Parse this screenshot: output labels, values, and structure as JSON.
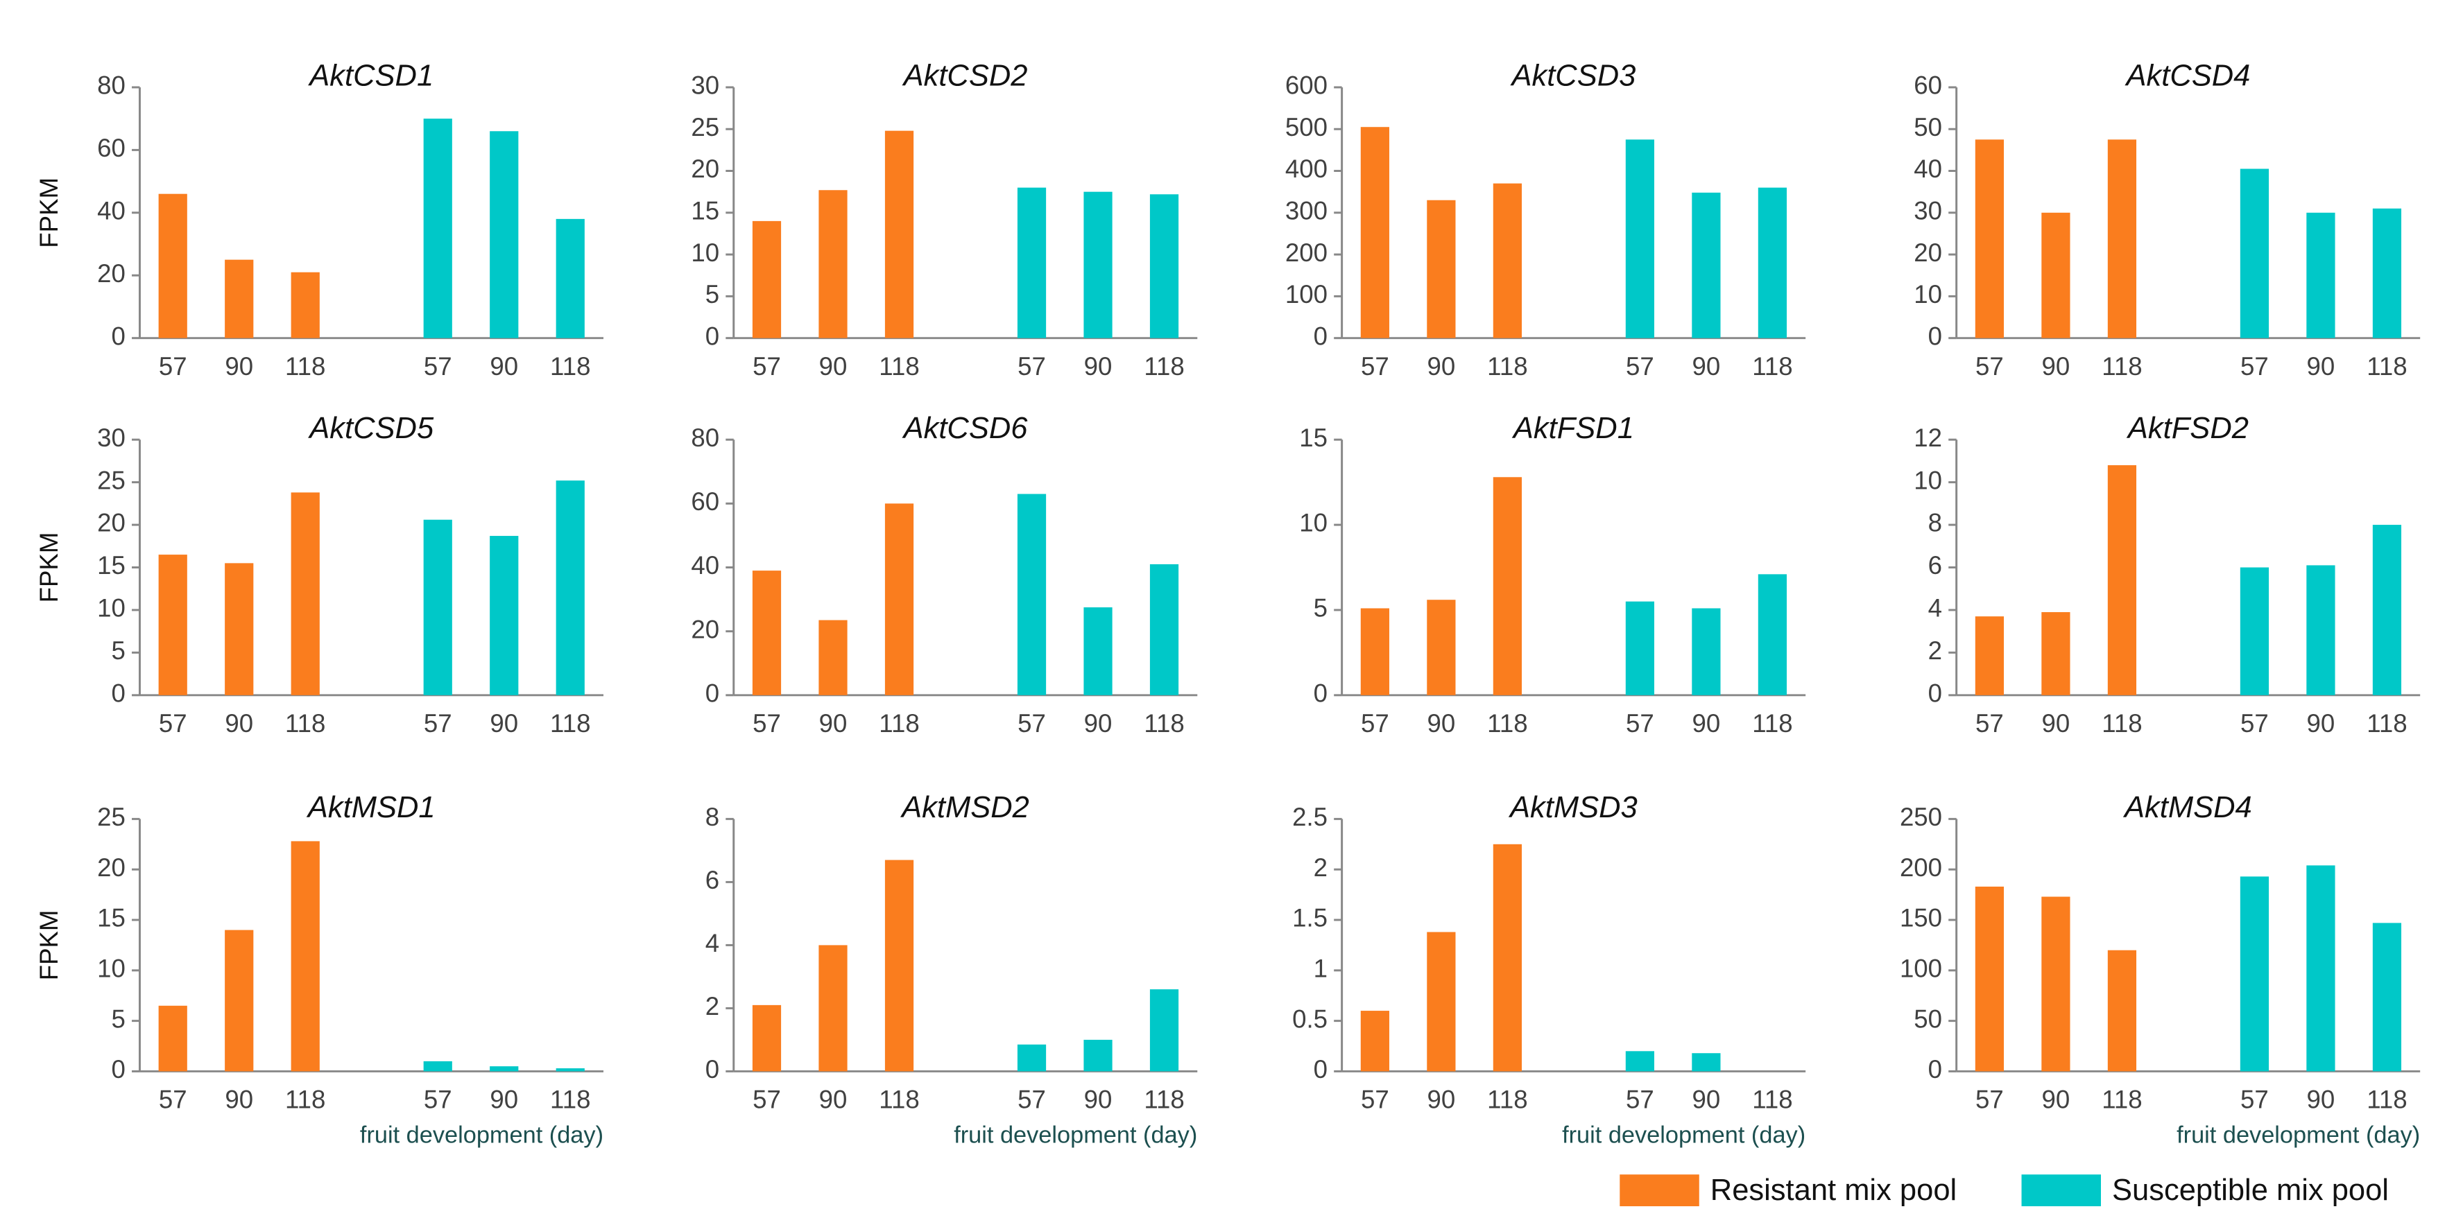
{
  "legend": [
    {
      "name": "Resistant mix pool",
      "color": "#fa7d1e"
    },
    {
      "name": "Susceptible mix pool",
      "color": "#00c8c8"
    }
  ],
  "chart_data": [
    {
      "type": "bar",
      "title": "AktCSD1",
      "ylabel": "FPKM",
      "categories": [
        "57",
        "90",
        "118",
        "57",
        "90",
        "118"
      ],
      "ylim": [
        0,
        80
      ],
      "yticks": [
        0,
        20,
        40,
        60,
        80
      ],
      "series": [
        {
          "values": [
            46,
            25,
            21,
            null,
            null,
            null
          ]
        },
        {
          "values": [
            null,
            null,
            null,
            70,
            66,
            38
          ]
        }
      ]
    },
    {
      "type": "bar",
      "title": "AktCSD2",
      "categories": [
        "57",
        "90",
        "118",
        "57",
        "90",
        "118"
      ],
      "ylim": [
        0,
        30
      ],
      "yticks": [
        0,
        5,
        10,
        15,
        20,
        25,
        30
      ],
      "series": [
        {
          "values": [
            14,
            17.7,
            24.8,
            null,
            null,
            null
          ]
        },
        {
          "values": [
            null,
            null,
            null,
            18,
            17.5,
            17.2
          ]
        }
      ]
    },
    {
      "type": "bar",
      "title": "AktCSD3",
      "categories": [
        "57",
        "90",
        "118",
        "57",
        "90",
        "118"
      ],
      "ylim": [
        0,
        600
      ],
      "yticks": [
        0,
        100,
        200,
        300,
        400,
        500,
        600
      ],
      "series": [
        {
          "values": [
            505,
            330,
            370,
            null,
            null,
            null
          ]
        },
        {
          "values": [
            null,
            null,
            null,
            475,
            348,
            360
          ]
        }
      ]
    },
    {
      "type": "bar",
      "title": "AktCSD4",
      "categories": [
        "57",
        "90",
        "118",
        "57",
        "90",
        "118"
      ],
      "ylim": [
        0,
        60
      ],
      "yticks": [
        0,
        10,
        20,
        30,
        40,
        50,
        60
      ],
      "series": [
        {
          "values": [
            47.5,
            30,
            47.5,
            null,
            null,
            null
          ]
        },
        {
          "values": [
            null,
            null,
            null,
            40.5,
            30,
            31
          ]
        }
      ]
    },
    {
      "type": "bar",
      "title": "AktCSD5",
      "ylabel": "FPKM",
      "categories": [
        "57",
        "90",
        "118",
        "57",
        "90",
        "118"
      ],
      "ylim": [
        0,
        30
      ],
      "yticks": [
        0,
        5,
        10,
        15,
        20,
        25,
        30
      ],
      "series": [
        {
          "values": [
            16.5,
            15.5,
            23.8,
            null,
            null,
            null
          ]
        },
        {
          "values": [
            null,
            null,
            null,
            20.6,
            18.7,
            25.2
          ]
        }
      ]
    },
    {
      "type": "bar",
      "title": "AktCSD6",
      "categories": [
        "57",
        "90",
        "118",
        "57",
        "90",
        "118"
      ],
      "ylim": [
        0,
        80
      ],
      "yticks": [
        0,
        20,
        40,
        60,
        80
      ],
      "series": [
        {
          "values": [
            39,
            23.5,
            60,
            null,
            null,
            null
          ]
        },
        {
          "values": [
            null,
            null,
            null,
            63,
            27.5,
            41
          ]
        }
      ]
    },
    {
      "type": "bar",
      "title": "AktFSD1",
      "categories": [
        "57",
        "90",
        "118",
        "57",
        "90",
        "118"
      ],
      "ylim": [
        0,
        15
      ],
      "yticks": [
        0,
        5,
        10,
        15
      ],
      "series": [
        {
          "values": [
            5.1,
            5.6,
            12.8,
            null,
            null,
            null
          ]
        },
        {
          "values": [
            null,
            null,
            null,
            5.5,
            5.1,
            7.1
          ]
        }
      ]
    },
    {
      "type": "bar",
      "title": "AktFSD2",
      "categories": [
        "57",
        "90",
        "118",
        "57",
        "90",
        "118"
      ],
      "ylim": [
        0,
        12
      ],
      "yticks": [
        0,
        2,
        4,
        6,
        8,
        10,
        12
      ],
      "series": [
        {
          "values": [
            3.7,
            3.9,
            10.8,
            null,
            null,
            null
          ]
        },
        {
          "values": [
            null,
            null,
            null,
            6,
            6.1,
            8
          ]
        }
      ]
    },
    {
      "type": "bar",
      "title": "AktMSD1",
      "ylabel": "FPKM",
      "xlabel": "fruit development (day)",
      "categories": [
        "57",
        "90",
        "118",
        "57",
        "90",
        "118"
      ],
      "ylim": [
        0,
        25
      ],
      "yticks": [
        0,
        5,
        10,
        15,
        20,
        25
      ],
      "series": [
        {
          "values": [
            6.5,
            14,
            22.8,
            null,
            null,
            null
          ]
        },
        {
          "values": [
            null,
            null,
            null,
            1,
            0.5,
            0.3
          ]
        }
      ]
    },
    {
      "type": "bar",
      "title": "AktMSD2",
      "xlabel": "fruit development (day)",
      "categories": [
        "57",
        "90",
        "118",
        "57",
        "90",
        "118"
      ],
      "ylim": [
        0,
        8
      ],
      "yticks": [
        0,
        2,
        4,
        6,
        8
      ],
      "series": [
        {
          "values": [
            2.1,
            4,
            6.7,
            null,
            null,
            null
          ]
        },
        {
          "values": [
            null,
            null,
            null,
            0.85,
            1,
            2.6
          ]
        }
      ]
    },
    {
      "type": "bar",
      "title": "AktMSD3",
      "xlabel": "fruit development (day)",
      "categories": [
        "57",
        "90",
        "118",
        "57",
        "90",
        "118"
      ],
      "ylim": [
        0,
        2.5
      ],
      "yticks": [
        0,
        0.5,
        1,
        1.5,
        2,
        2.5
      ],
      "series": [
        {
          "values": [
            0.6,
            1.38,
            2.25,
            null,
            null,
            null
          ]
        },
        {
          "values": [
            null,
            null,
            null,
            0.2,
            0.18,
            0
          ]
        }
      ]
    },
    {
      "type": "bar",
      "title": "AktMSD4",
      "xlabel": "fruit development (day)",
      "categories": [
        "57",
        "90",
        "118",
        "57",
        "90",
        "118"
      ],
      "ylim": [
        0,
        250
      ],
      "yticks": [
        0,
        50,
        100,
        150,
        200,
        250
      ],
      "series": [
        {
          "values": [
            183,
            173,
            120,
            null,
            null,
            null
          ]
        },
        {
          "values": [
            null,
            null,
            null,
            193,
            204,
            147
          ]
        }
      ]
    }
  ]
}
